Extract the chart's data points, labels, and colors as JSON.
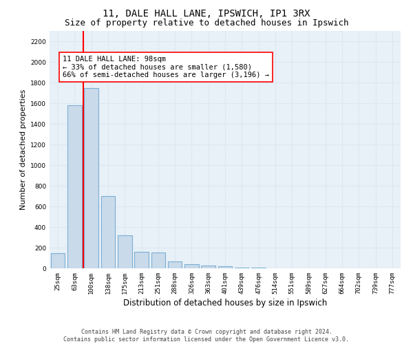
{
  "title_line1": "11, DALE HALL LANE, IPSWICH, IP1 3RX",
  "title_line2": "Size of property relative to detached houses in Ipswich",
  "xlabel": "Distribution of detached houses by size in Ipswich",
  "ylabel": "Number of detached properties",
  "categories": [
    "25sqm",
    "63sqm",
    "100sqm",
    "138sqm",
    "175sqm",
    "213sqm",
    "251sqm",
    "288sqm",
    "326sqm",
    "363sqm",
    "401sqm",
    "439sqm",
    "476sqm",
    "514sqm",
    "551sqm",
    "589sqm",
    "627sqm",
    "664sqm",
    "702sqm",
    "739sqm",
    "777sqm"
  ],
  "values": [
    150,
    1580,
    1750,
    700,
    320,
    160,
    155,
    70,
    42,
    28,
    18,
    10,
    5,
    2,
    1,
    1,
    1,
    0,
    0,
    0,
    0
  ],
  "bar_color": "#c9daea",
  "bar_edge_color": "#7bafd4",
  "bar_linewidth": 0.8,
  "red_line_x": 1.5,
  "annotation_text": "11 DALE HALL LANE: 98sqm\n← 33% of detached houses are smaller (1,580)\n66% of semi-detached houses are larger (3,196) →",
  "ylim": [
    0,
    2300
  ],
  "yticks": [
    0,
    200,
    400,
    600,
    800,
    1000,
    1200,
    1400,
    1600,
    1800,
    2000,
    2200
  ],
  "grid_color": "#dde8f0",
  "bg_color": "#e8f0f8",
  "footer_line1": "Contains HM Land Registry data © Crown copyright and database right 2024.",
  "footer_line2": "Contains public sector information licensed under the Open Government Licence v3.0.",
  "title_fontsize": 10,
  "subtitle_fontsize": 9,
  "tick_fontsize": 6.5,
  "ylabel_fontsize": 8,
  "xlabel_fontsize": 8.5,
  "footer_fontsize": 6,
  "ann_fontsize": 7.5
}
